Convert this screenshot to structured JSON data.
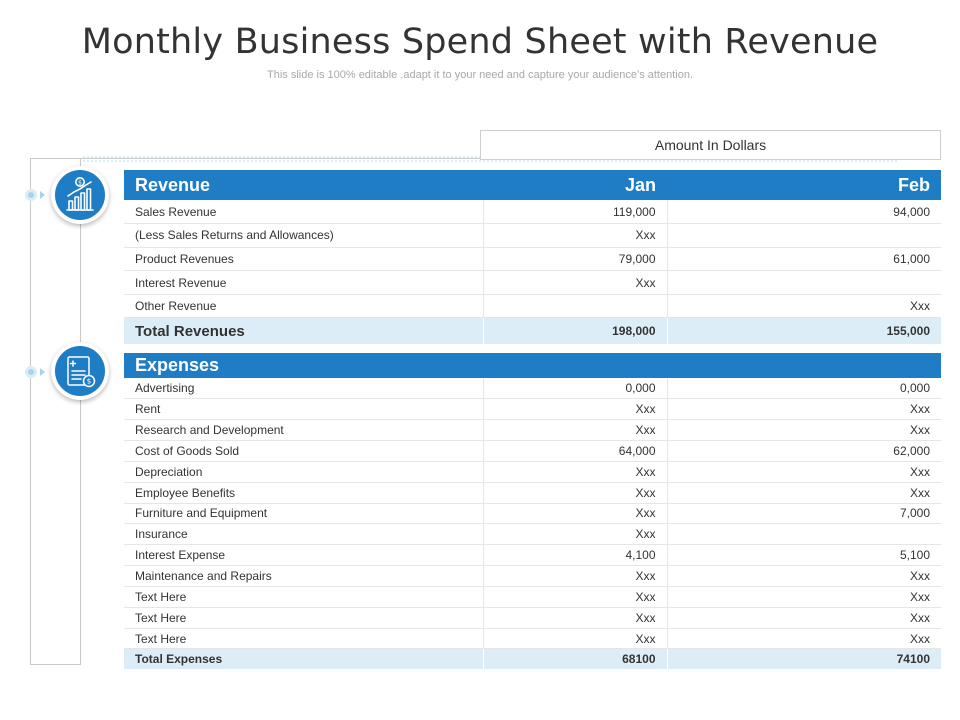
{
  "title": "Monthly Business Spend Sheet with Revenue",
  "subtitle": "This slide is 100% editable .adapt it to your need and capture your audience’s attention.",
  "amount_label": "Amount In Dollars",
  "colors": {
    "accent": "#1e7dc4",
    "total_bg": "#dcedf8",
    "connector": "#a9d3ea"
  },
  "icons": {
    "revenue": "revenue-growth-chart-icon",
    "expenses": "expense-receipt-icon"
  },
  "revenue": {
    "header": {
      "label": "Revenue",
      "jan": "Jan",
      "feb": "Feb"
    },
    "rows": [
      {
        "label": "Sales Revenue",
        "jan": "119,000",
        "feb": "94,000"
      },
      {
        "label": "(Less Sales Returns and Allowances)",
        "jan": "Xxx",
        "feb": ""
      },
      {
        "label": "Product Revenues",
        "jan": "79,000",
        "feb": "61,000"
      },
      {
        "label": "Interest Revenue",
        "jan": "Xxx",
        "feb": ""
      },
      {
        "label": "Other Revenue",
        "jan": "",
        "feb": "Xxx"
      }
    ],
    "total": {
      "label": "Total Revenues",
      "jan": "198,000",
      "feb": "155,000"
    }
  },
  "expenses": {
    "header": {
      "label": "Expenses",
      "jan": "",
      "feb": ""
    },
    "rows": [
      {
        "label": "Advertising",
        "jan": "0,000",
        "feb": "0,000"
      },
      {
        "label": "Rent",
        "jan": "Xxx",
        "feb": "Xxx"
      },
      {
        "label": "Research and Development",
        "jan": "Xxx",
        "feb": "Xxx"
      },
      {
        "label": "Cost of Goods Sold",
        "jan": "64,000",
        "feb": "62,000"
      },
      {
        "label": "Depreciation",
        "jan": "Xxx",
        "feb": "Xxx"
      },
      {
        "label": "Employee Benefits",
        "jan": "Xxx",
        "feb": "Xxx"
      },
      {
        "label": "Furniture and Equipment",
        "jan": "Xxx",
        "feb": "7,000"
      },
      {
        "label": "Insurance",
        "jan": "Xxx",
        "feb": ""
      },
      {
        "label": "Interest Expense",
        "jan": "4,100",
        "feb": "5,100"
      },
      {
        "label": "Maintenance and Repairs",
        "jan": "Xxx",
        "feb": "Xxx"
      },
      {
        "label": "Text Here",
        "jan": "Xxx",
        "feb": "Xxx"
      },
      {
        "label": "Text Here",
        "jan": "Xxx",
        "feb": "Xxx"
      },
      {
        "label": "Text Here",
        "jan": "Xxx",
        "feb": "Xxx"
      }
    ],
    "total": {
      "label": "Total Expenses",
      "jan": "68100",
      "feb": "74100"
    }
  }
}
